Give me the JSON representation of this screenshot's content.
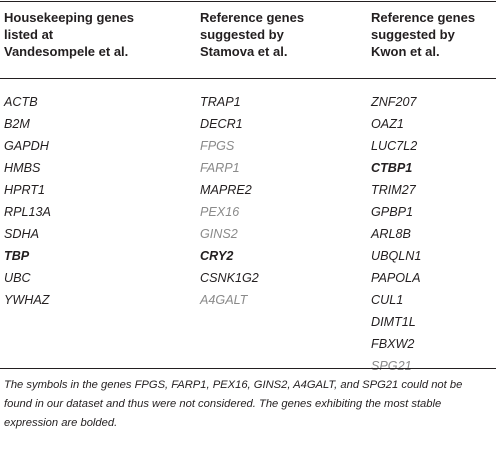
{
  "headers": [
    "Housekeeping genes\nlisted at\nVandesompele et al.",
    "Reference genes\nsuggested by\nStamova et al.",
    "Reference genes\nsuggested by\nKwon et al."
  ],
  "columns": [
    [
      {
        "name": "ACTB",
        "style": "normal"
      },
      {
        "name": "B2M",
        "style": "normal"
      },
      {
        "name": "GAPDH",
        "style": "normal"
      },
      {
        "name": "HMBS",
        "style": "normal"
      },
      {
        "name": "HPRT1",
        "style": "normal"
      },
      {
        "name": "RPL13A",
        "style": "normal"
      },
      {
        "name": "SDHA",
        "style": "normal"
      },
      {
        "name": "TBP",
        "style": "bold"
      },
      {
        "name": "UBC",
        "style": "normal"
      },
      {
        "name": "YWHAZ",
        "style": "normal"
      }
    ],
    [
      {
        "name": "TRAP1",
        "style": "normal"
      },
      {
        "name": "DECR1",
        "style": "normal"
      },
      {
        "name": "FPGS",
        "style": "gray"
      },
      {
        "name": "FARP1",
        "style": "gray"
      },
      {
        "name": "MAPRE2",
        "style": "normal"
      },
      {
        "name": "PEX16",
        "style": "gray"
      },
      {
        "name": "GINS2",
        "style": "gray"
      },
      {
        "name": "CRY2",
        "style": "bold"
      },
      {
        "name": "CSNK1G2",
        "style": "normal"
      },
      {
        "name": "A4GALT",
        "style": "gray"
      }
    ],
    [
      {
        "name": "ZNF207",
        "style": "normal"
      },
      {
        "name": "OAZ1",
        "style": "normal"
      },
      {
        "name": "LUC7L2",
        "style": "normal"
      },
      {
        "name": "CTBP1",
        "style": "bold"
      },
      {
        "name": "TRIM27",
        "style": "normal"
      },
      {
        "name": "GPBP1",
        "style": "normal"
      },
      {
        "name": "ARL8B",
        "style": "normal"
      },
      {
        "name": "UBQLN1",
        "style": "normal"
      },
      {
        "name": "PAPOLA",
        "style": "normal"
      },
      {
        "name": "CUL1",
        "style": "normal"
      },
      {
        "name": "DIMT1L",
        "style": "normal"
      },
      {
        "name": "FBXW2",
        "style": "normal"
      },
      {
        "name": "SPG21",
        "style": "gray"
      }
    ]
  ],
  "footnote": "The symbols in the genes FPGS, FARP1, PEX16, GINS2, A4GALT, and SPG21 could not be found in our dataset and thus were not considered. The genes exhibiting the most stable expression are bolded."
}
